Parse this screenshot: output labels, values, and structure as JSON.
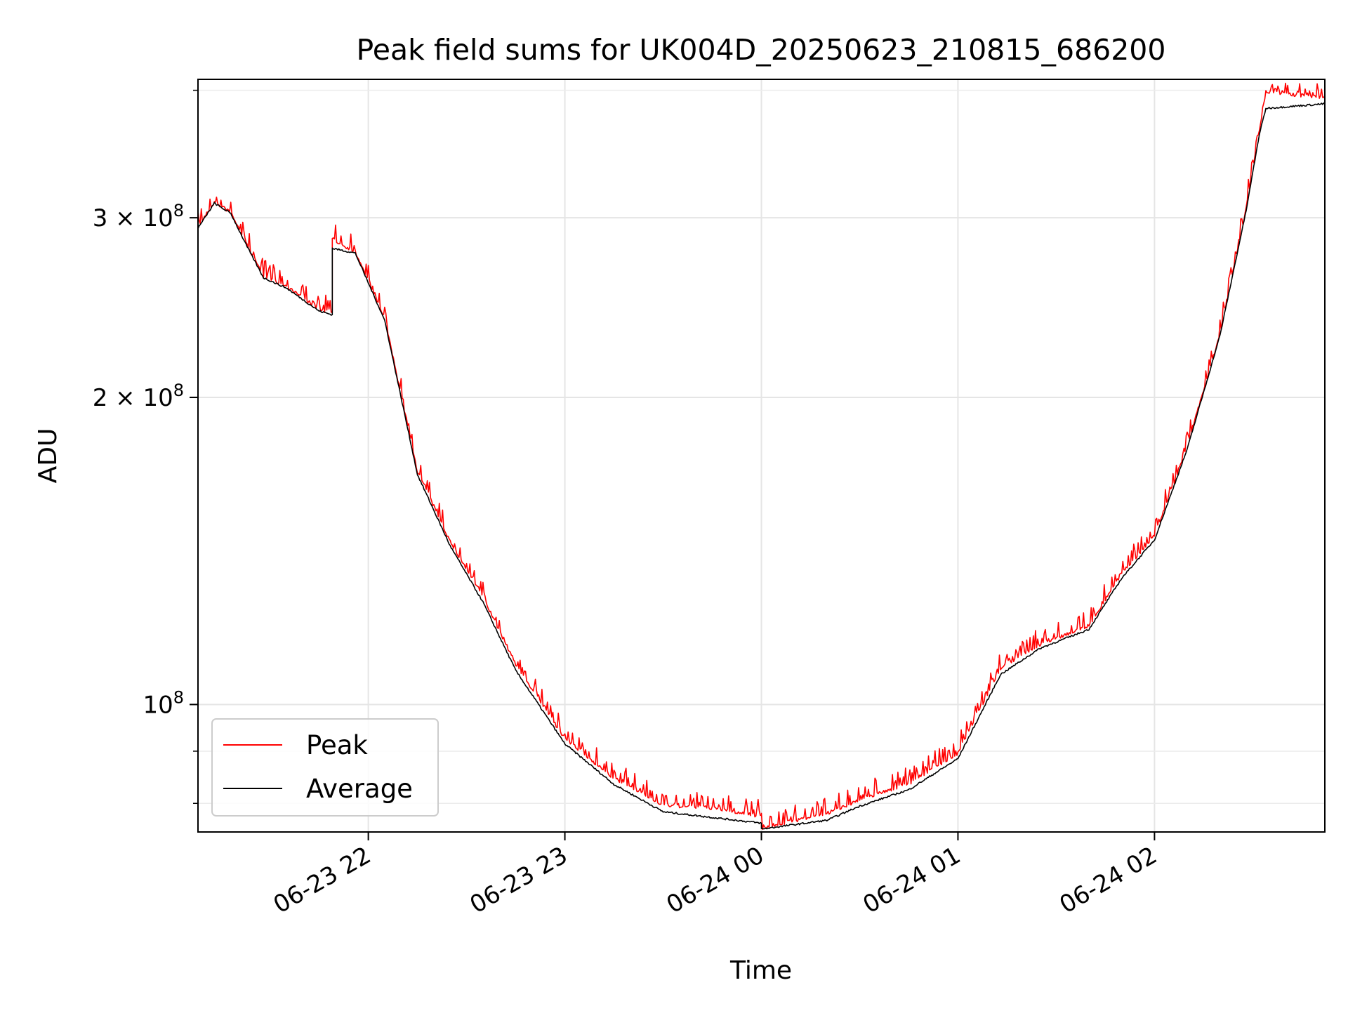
{
  "chart_data": {
    "type": "line",
    "title": "Peak field sums for UK004D_20250623_210815_686200",
    "xlabel": "Time",
    "ylabel": "ADU",
    "y_scale": "log",
    "grid": true,
    "legend_position": "lower-left",
    "xlim": [
      "2025-06-23 21:08",
      "2025-06-24 02:52"
    ],
    "ylim": [
      75000000,
      410000000
    ],
    "x_ticks": [
      {
        "value": "2025-06-23 22:00",
        "label": "06-23 22"
      },
      {
        "value": "2025-06-23 23:00",
        "label": "06-23 23"
      },
      {
        "value": "2025-06-24 00:00",
        "label": "06-24 00"
      },
      {
        "value": "2025-06-24 01:00",
        "label": "06-24 01"
      },
      {
        "value": "2025-06-24 02:00",
        "label": "06-24 02"
      }
    ],
    "y_major_ticks": [
      {
        "value": 100000000,
        "base": "10",
        "exp": "8",
        "mantissa": ""
      },
      {
        "value": 200000000,
        "base": "10",
        "exp": "8",
        "mantissa": "2"
      },
      {
        "value": 300000000,
        "base": "10",
        "exp": "8",
        "mantissa": "3"
      }
    ],
    "y_minor_ticks": [
      80000000,
      90000000,
      400000000
    ],
    "series": [
      {
        "name": "Peak",
        "color": "#ff0000",
        "noise": 0.035,
        "x": [
          "2025-06-23 21:08",
          "2025-06-23 21:13",
          "2025-06-23 21:18",
          "2025-06-23 21:23",
          "2025-06-23 21:28",
          "2025-06-23 21:35",
          "2025-06-23 21:45",
          "2025-06-23 21:49",
          "2025-06-23 21:49",
          "2025-06-23 21:56",
          "2025-06-23 22:05",
          "2025-06-23 22:15",
          "2025-06-23 22:25",
          "2025-06-23 22:35",
          "2025-06-23 22:45",
          "2025-06-23 23:00",
          "2025-06-23 23:15",
          "2025-06-23 23:30",
          "2025-06-23 23:45",
          "2025-06-24 00:00",
          "2025-06-24 00:00",
          "2025-06-24 00:20",
          "2025-06-24 00:30",
          "2025-06-24 00:45",
          "2025-06-24 01:00",
          "2025-06-24 01:13",
          "2025-06-24 01:25",
          "2025-06-24 01:40",
          "2025-06-24 01:50",
          "2025-06-24 02:00",
          "2025-06-24 02:10",
          "2025-06-24 02:20",
          "2025-06-24 02:28",
          "2025-06-24 02:32",
          "2025-06-24 02:34",
          "2025-06-24 02:52"
        ],
        "y": [
          295000000,
          312000000,
          305000000,
          283000000,
          264000000,
          258000000,
          245000000,
          243000000,
          287000000,
          279000000,
          240000000,
          170000000,
          145000000,
          128000000,
          110000000,
          93000000,
          85000000,
          80000000,
          79500000,
          78000000,
          76000000,
          78500000,
          81000000,
          84000000,
          90000000,
          109000000,
          115000000,
          120000000,
          135000000,
          147000000,
          180000000,
          232000000,
          308000000,
          368000000,
          400000000,
          395000000
        ]
      },
      {
        "name": "Average",
        "color": "#000000",
        "noise": 0,
        "x": [
          "2025-06-23 21:08",
          "2025-06-23 21:13",
          "2025-06-23 21:18",
          "2025-06-23 21:23",
          "2025-06-23 21:28",
          "2025-06-23 21:35",
          "2025-06-23 21:45",
          "2025-06-23 21:49",
          "2025-06-23 21:49",
          "2025-06-23 21:56",
          "2025-06-23 22:05",
          "2025-06-23 22:15",
          "2025-06-23 22:25",
          "2025-06-23 22:35",
          "2025-06-23 22:45",
          "2025-06-23 23:00",
          "2025-06-23 23:15",
          "2025-06-23 23:30",
          "2025-06-23 23:45",
          "2025-06-24 00:00",
          "2025-06-24 00:00",
          "2025-06-24 00:20",
          "2025-06-24 00:30",
          "2025-06-24 00:45",
          "2025-06-24 01:00",
          "2025-06-24 01:13",
          "2025-06-24 01:25",
          "2025-06-24 01:40",
          "2025-06-24 01:50",
          "2025-06-24 02:00",
          "2025-06-24 02:10",
          "2025-06-24 02:20",
          "2025-06-24 02:28",
          "2025-06-24 02:32",
          "2025-06-24 02:34",
          "2025-06-24 02:52"
        ],
        "y": [
          293000000,
          310000000,
          303000000,
          281000000,
          262000000,
          256000000,
          243000000,
          241000000,
          280000000,
          277000000,
          238000000,
          168000000,
          143000000,
          126000000,
          108000000,
          91500000,
          83500000,
          78500000,
          77500000,
          76500000,
          75500000,
          77000000,
          79500000,
          82500000,
          88500000,
          107000000,
          113500000,
          118500000,
          133000000,
          145000000,
          178000000,
          230000000,
          305000000,
          362000000,
          384000000,
          388000000
        ]
      }
    ]
  }
}
